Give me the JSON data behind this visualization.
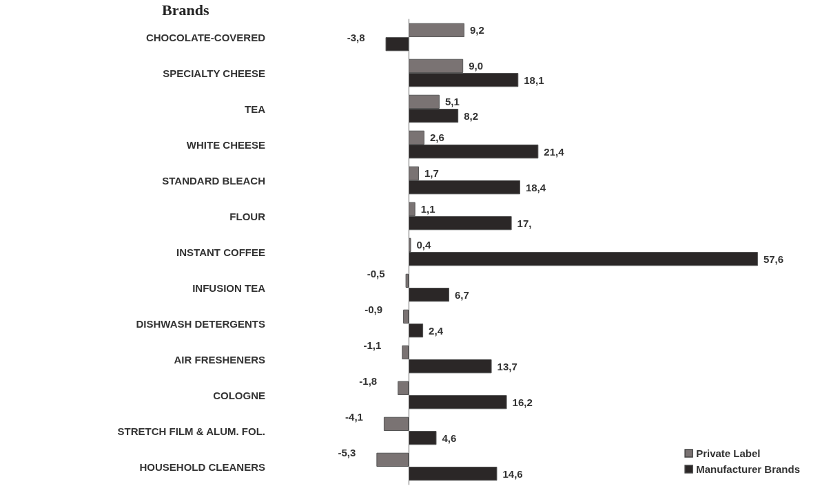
{
  "chart_data": {
    "type": "bar",
    "orientation": "horizontal",
    "title": "Brands",
    "categories": [
      "CHOCOLATE-COVERED",
      "SPECIALTY CHEESE",
      "TEA",
      "WHITE CHEESE",
      "STANDARD BLEACH",
      "FLOUR",
      "INSTANT COFFEE",
      "INFUSION TEA",
      "DISHWASH DETERGENTS",
      "AIR FRESHENERS",
      "COLOGNE",
      "STRETCH FILM & ALUM. FOL.",
      "HOUSEHOLD CLEANERS"
    ],
    "series": [
      {
        "name": "Private Label",
        "color": "#7a7373",
        "values": [
          9.2,
          9.0,
          5.1,
          2.6,
          1.7,
          1.1,
          0.4,
          -0.5,
          -0.9,
          -1.1,
          -1.8,
          -4.1,
          -5.3
        ],
        "value_labels": [
          "9,2",
          "9,0",
          "5,1",
          "2,6",
          "1,7",
          "1,1",
          "0,4",
          "-0,5",
          "-0,9",
          "-1,1",
          "-1,8",
          "-4,1",
          "-5,3"
        ]
      },
      {
        "name": "Manufacturer Brands",
        "color": "#2b2727",
        "values": [
          -3.8,
          18.1,
          8.2,
          21.4,
          18.4,
          17.0,
          57.6,
          6.7,
          2.4,
          13.7,
          16.2,
          4.6,
          14.6
        ],
        "value_labels": [
          "-3,8",
          "18,1",
          "8,2",
          "21,4",
          "18,4",
          "17,",
          "57,6",
          "6,7",
          "2,4",
          "13,7",
          "16,2",
          "4,6",
          "14,6"
        ]
      }
    ],
    "legend": "bottom right"
  }
}
